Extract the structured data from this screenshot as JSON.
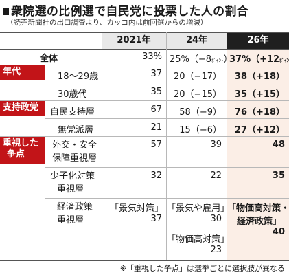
{
  "title": "衆院選の比例選で自民党に投票した人の割合",
  "subtitle": "（読売新聞社の出口調査より、カッコ内は前回選からの増減）",
  "columns": {
    "y2021": "2021年",
    "y24": "24年",
    "y26": "26年"
  },
  "total": {
    "label": "全体",
    "v2021": "33%",
    "v24": "25%（−8",
    "v24_unit": "ﾎﾟｲﾝﾄ",
    "v24_close": "）",
    "v26": "37%（+12",
    "v26_unit": "ﾎﾟｲﾝﾄ",
    "v26_close": "）"
  },
  "sections": {
    "age": {
      "label": "年代"
    },
    "party": {
      "label": "支持政党"
    },
    "issue": {
      "label1": "重視した",
      "label2": "争点"
    }
  },
  "rows": {
    "age18": {
      "label": "18～29歳",
      "v2021": "37",
      "v24": "20（−17）",
      "v26": "38（+18）"
    },
    "age30": {
      "label": "30歳代",
      "v2021": "35",
      "v24": "20（−15）",
      "v26": "35（+15）"
    },
    "ldp": {
      "label": "自民支持層",
      "v2021": "67",
      "v24": "58（−9）",
      "v26": "76（+18）"
    },
    "indep": {
      "label": "無党派層",
      "v2021": "21",
      "v24": "15（−6）",
      "v26": "27（+12）"
    },
    "foreign": {
      "label1": "外交・安全",
      "label2": "保障重視層",
      "v2021": "57",
      "v24": "39",
      "v26": "48"
    },
    "child": {
      "label1": "少子化対策",
      "label2": "重視層",
      "v2021": "32",
      "v24": "22",
      "v26": "35"
    },
    "econ": {
      "label1": "経済政策",
      "label2": "重視層",
      "v2021_topic": "「景気対策」",
      "v2021": "37",
      "v24_topic": "「景気や雇用」",
      "v24": "30",
      "v24_topic2": "「物価高対策」",
      "v24b": "23",
      "v26_topic1": "「物価高対策・",
      "v26_topic2": "経済政策」",
      "v26": "40"
    }
  },
  "note": "※「重視した争点」は選挙ごとに選択肢が異なる",
  "colors": {
    "category_red": "#c21418",
    "header_dark": "#1f1f1f",
    "highlight": "#fbeee6",
    "header_gray": "#e8e8e8"
  }
}
